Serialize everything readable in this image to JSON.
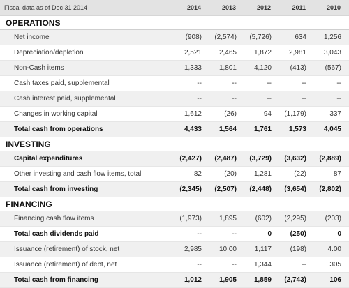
{
  "header": {
    "label": "Fiscal data as of Dec 31 2014",
    "years": [
      "2014",
      "2013",
      "2012",
      "2011",
      "2010"
    ]
  },
  "sections": [
    {
      "title": "OPERATIONS",
      "rows": [
        {
          "name": "Net income",
          "values": [
            "(908)",
            "(2,574)",
            "(5,726)",
            "634",
            "1,256"
          ],
          "style": "shaded"
        },
        {
          "name": "Depreciation/depletion",
          "values": [
            "2,521",
            "2,465",
            "1,872",
            "2,981",
            "3,043"
          ],
          "style": "plain"
        },
        {
          "name": "Non-Cash items",
          "values": [
            "1,333",
            "1,801",
            "4,120",
            "(413)",
            "(567)"
          ],
          "style": "shaded"
        },
        {
          "name": "Cash taxes paid, supplemental",
          "values": [
            "--",
            "--",
            "--",
            "--",
            "--"
          ],
          "style": "plain"
        },
        {
          "name": "Cash interest paid, supplemental",
          "values": [
            "--",
            "--",
            "--",
            "--",
            "--"
          ],
          "style": "shaded"
        },
        {
          "name": "Changes in working capital",
          "values": [
            "1,612",
            "(26)",
            "94",
            "(1,179)",
            "337"
          ],
          "style": "plain"
        },
        {
          "name": "Total cash from operations",
          "values": [
            "4,433",
            "1,564",
            "1,761",
            "1,573",
            "4,045"
          ],
          "style": "total"
        }
      ]
    },
    {
      "title": "INVESTING",
      "rows": [
        {
          "name": "Capital expenditures",
          "values": [
            "(2,427)",
            "(2,487)",
            "(3,729)",
            "(3,632)",
            "(2,889)"
          ],
          "style": "shaded bold"
        },
        {
          "name": "Other investing and cash flow items, total",
          "values": [
            "82",
            "(20)",
            "1,281",
            "(22)",
            "87"
          ],
          "style": "plain"
        },
        {
          "name": "Total cash from investing",
          "values": [
            "(2,345)",
            "(2,507)",
            "(2,448)",
            "(3,654)",
            "(2,802)"
          ],
          "style": "total"
        }
      ]
    },
    {
      "title": "FINANCING",
      "rows": [
        {
          "name": "Financing cash flow items",
          "values": [
            "(1,973)",
            "1,895",
            "(602)",
            "(2,295)",
            "(203)"
          ],
          "style": "shaded"
        },
        {
          "name": "Total cash dividends paid",
          "values": [
            "--",
            "--",
            "0",
            "(250)",
            "0"
          ],
          "style": "plain bold"
        },
        {
          "name": "Issuance (retirement) of stock, net",
          "values": [
            "2,985",
            "10.00",
            "1,117",
            "(198)",
            "4.00"
          ],
          "style": "shaded"
        },
        {
          "name": "Issuance (retirement) of debt, net",
          "values": [
            "--",
            "--",
            "1,344",
            "--",
            "305"
          ],
          "style": "plain"
        },
        {
          "name": "Total cash from financing",
          "values": [
            "1,012",
            "1,905",
            "1,859",
            "(2,743)",
            "106"
          ],
          "style": "total"
        }
      ]
    }
  ]
}
